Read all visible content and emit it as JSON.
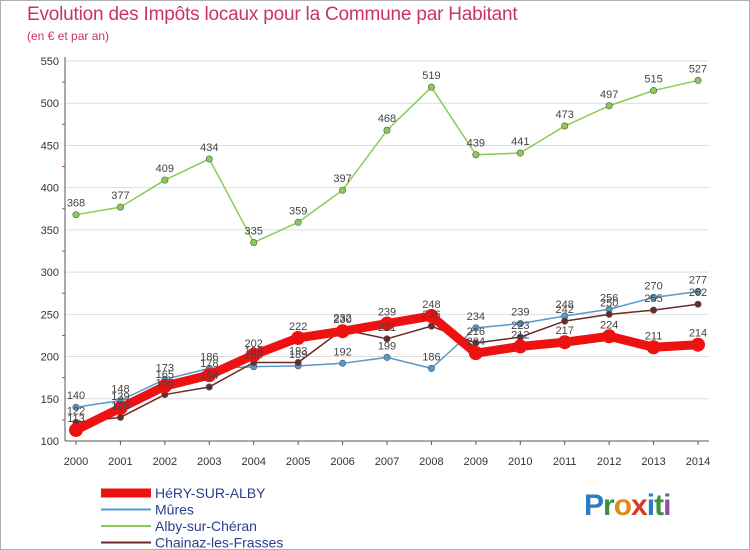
{
  "title": "Evolution des Impôts locaux pour la Commune par Habitant",
  "subtitle": "(en € et par an)",
  "logo": {
    "text": "Proxiti",
    "letters": [
      {
        "ch": "P",
        "color": "#2b7cc4"
      },
      {
        "ch": "r",
        "color": "#3f8f3a"
      },
      {
        "ch": "o",
        "color": "#e08a1c"
      },
      {
        "ch": "x",
        "color": "#d53a2c"
      },
      {
        "ch": "i",
        "color": "#2b7cc4"
      },
      {
        "ch": "t",
        "color": "#3f8f3a"
      },
      {
        "ch": "i",
        "color": "#8a4fa5"
      }
    ]
  },
  "chart_data": {
    "type": "line",
    "title": "Evolution des Impôts locaux pour la Commune par Habitant",
    "subtitle": "(en € et par an)",
    "xlabel": "",
    "ylabel": "",
    "x": [
      "2000",
      "2001",
      "2002",
      "2003",
      "2004",
      "2005",
      "2006",
      "2007",
      "2008",
      "2009",
      "2010",
      "2011",
      "2012",
      "2013",
      "2014"
    ],
    "ylim": [
      100,
      550
    ],
    "yticks": [
      100,
      150,
      200,
      250,
      300,
      350,
      400,
      450,
      500,
      550
    ],
    "grid": "horizontal",
    "legend_position": "bottom-left",
    "series": [
      {
        "name": "Alby-sur-Chéran",
        "color": "#88cc55",
        "values": [
          368,
          377,
          409,
          434,
          335,
          359,
          397,
          468,
          519,
          439,
          441,
          473,
          497,
          515,
          527
        ],
        "labels": [
          "368",
          "377",
          "409",
          "434",
          "335",
          "359",
          "397",
          "468",
          "519",
          "439",
          "441",
          "473",
          "497",
          "515",
          "527"
        ]
      },
      {
        "name": "Mûres",
        "color": "#5599cc",
        "values": [
          140,
          148,
          173,
          186,
          188,
          189,
          192,
          199,
          186,
          234,
          239,
          248,
          256,
          270,
          277
        ],
        "labels": [
          "140",
          "148",
          "173",
          "186",
          "188",
          "189",
          "192",
          "199",
          "186",
          "234",
          "239",
          "248",
          "256",
          "270",
          "277"
        ]
      },
      {
        "name": "Chainaz-les-Frasses",
        "color": "#6b2a2a",
        "values": [
          122,
          128,
          155,
          164,
          193,
          193,
          232,
          221,
          236,
          216,
          223,
          242,
          250,
          255,
          262
        ],
        "labels": [
          "122",
          "128",
          "155",
          "164",
          "193",
          "193",
          "232",
          "221",
          "236",
          "216",
          "223",
          "242",
          "250",
          "255",
          "262"
        ]
      },
      {
        "name": "HéRY-SUR-ALBY",
        "color": "#ee1111",
        "values": [
          113,
          139,
          165,
          178,
          202,
          222,
          230,
          239,
          248,
          204,
          212,
          217,
          224,
          211,
          214
        ],
        "labels": [
          "113",
          "139",
          "165",
          "178",
          "202",
          "222",
          "230",
          "239",
          "248",
          "204",
          "212",
          "217",
          "224",
          "211",
          "214"
        ]
      }
    ],
    "legend_order": [
      "HéRY-SUR-ALBY",
      "Mûres",
      "Alby-sur-Chéran",
      "Chainaz-les-Frasses"
    ]
  }
}
